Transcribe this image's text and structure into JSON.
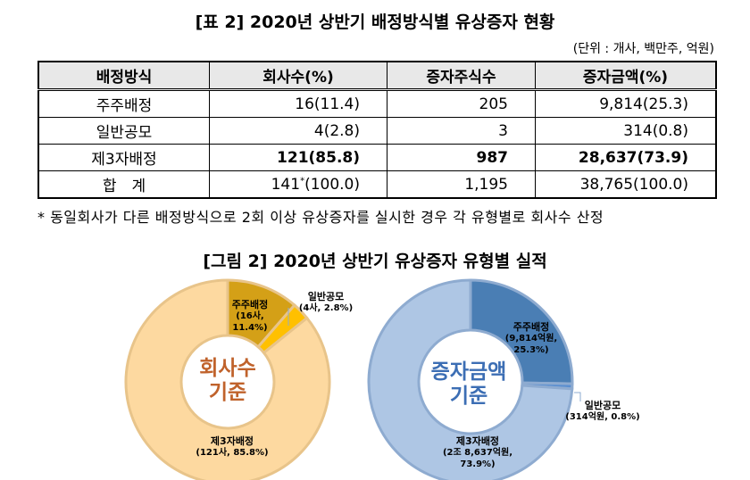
{
  "table_title": "[표 2] 2020년 상반기 배정방식별 유상증자 현황",
  "unit": "(단위 : 개사, 백만주, 억원)",
  "table": {
    "headers": [
      "배정방식",
      "회사수(%)",
      "증자주식수",
      "증자금액(%)"
    ],
    "rows": [
      [
        "주주배정",
        "16(11.4)",
        "205",
        "9,814(25.3)"
      ],
      [
        "일반공모",
        "4(2.8)",
        "3",
        "314(0.8)"
      ],
      [
        "제3자배정",
        "121(85.8)",
        "987",
        "28,637(73.9)"
      ],
      [
        "합　계",
        "141",
        "1,195",
        "38,765(100.0)"
      ]
    ],
    "total_count_pct": "(100.0)",
    "asterisk": "*"
  },
  "note": "* 동일회사가 다른 배정방식으로 2회 이상 유상증자를 실시한 경우 각 유형별로 회사수 산정",
  "figure_title": "[그림 2] 2020년 상반기 유상증자 유형별 실적",
  "chart_data": [
    {
      "type": "pie",
      "center_label": [
        "회사수",
        "기준"
      ],
      "categories": [
        "주주배정",
        "일반공모",
        "제3자배정"
      ],
      "values": [
        11.4,
        2.8,
        85.8
      ],
      "labels": [
        [
          "주주배정",
          "(16사, 11.4%)"
        ],
        [
          "일반공모",
          "(4사, 2.8%)"
        ],
        [
          "제3자배정",
          "(121사, 85.8%)"
        ]
      ],
      "colors": [
        "#d4a017",
        "#ffc000",
        "#fdd9a0"
      ],
      "center_color": "#c0622b"
    },
    {
      "type": "pie",
      "center_label": [
        "증자금액",
        "기준"
      ],
      "categories": [
        "주주배정",
        "일반공모",
        "제3자배정"
      ],
      "values": [
        25.3,
        0.8,
        73.9
      ],
      "labels": [
        [
          "주주배정",
          "(9,814억원,",
          "25.3%)"
        ],
        [
          "일반공모",
          "(314억원, 0.8%)"
        ],
        [
          "제3자배정",
          "(2조 8,637억원,",
          "73.9%)"
        ]
      ],
      "colors": [
        "#4a7eb4",
        "#5b8fd0",
        "#aec6e4"
      ],
      "center_color": "#3c6eb4"
    }
  ]
}
